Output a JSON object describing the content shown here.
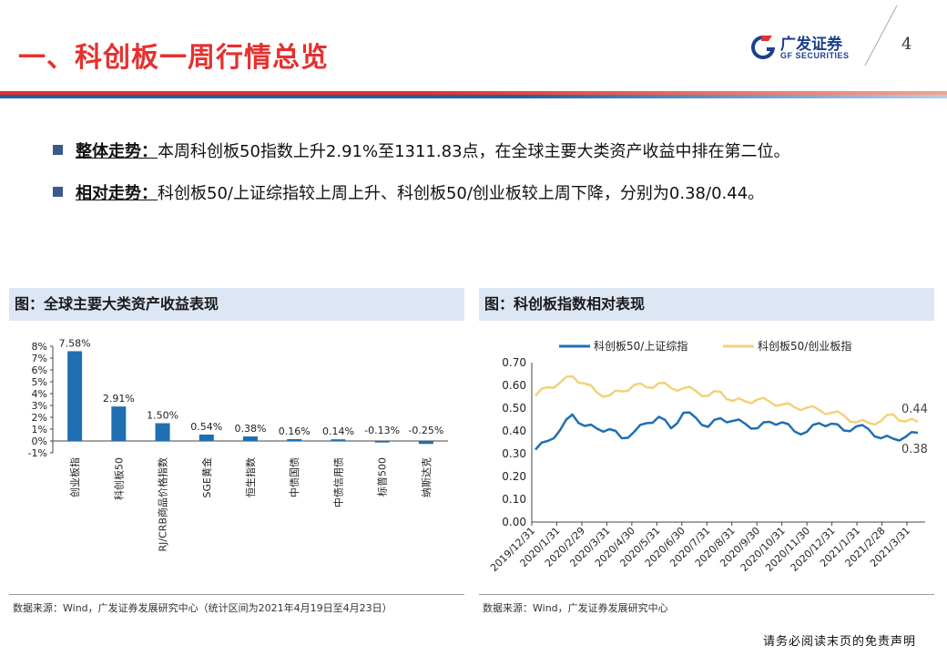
{
  "header": {
    "title": "一、科创板一周行情总览",
    "logo_cn": "广发证券",
    "logo_en": "GF SECURITIES",
    "page_number": "4",
    "colors": {
      "title_red": "#e4312f",
      "brand_blue": "#1b3f8f"
    }
  },
  "bullets": [
    {
      "key": "整体走势：",
      "text": "本周科创板50指数上升2.91%至1311.83点，在全球主要大类资产收益中排在第二位。"
    },
    {
      "key": "相对走势：",
      "text": "科创板50/上证综指较上周上升、科创板50/创业板较上周下降，分别为0.38/0.44。"
    }
  ],
  "panels": {
    "left_title": "图：全球主要大类资产收益表现",
    "right_title": "图：科创板指数相对表现",
    "left_source": "数据来源：Wind，广发证券发展研究中心（统计区间为2021年4月19日至4月23日）",
    "right_source": "数据来源：Wind，广发证券发展研究中心"
  },
  "chart_data": [
    {
      "type": "bar",
      "title": "",
      "categories": [
        "创业板指",
        "科创板50",
        "RJ/CRB商品价格指数",
        "SGE黄金",
        "恒生指数",
        "中债国债",
        "中债信用债",
        "标普500",
        "纳斯达克"
      ],
      "values": [
        7.58,
        2.91,
        1.5,
        0.54,
        0.38,
        0.16,
        0.14,
        -0.13,
        -0.25
      ],
      "value_labels": [
        "7.58%",
        "2.91%",
        "1.50%",
        "0.54%",
        "0.38%",
        "0.16%",
        "0.14%",
        "-0.13%",
        "-0.25%"
      ],
      "y_ticks": [
        "8%",
        "7%",
        "6%",
        "5%",
        "4%",
        "3%",
        "2%",
        "1%",
        "0%",
        "-1%"
      ],
      "ylim": [
        -1,
        8
      ],
      "bar_color": "#1f6fb2",
      "grid": false
    },
    {
      "type": "line",
      "title": "",
      "x_ticks": [
        "2019/12/31",
        "2020/1/31",
        "2020/2/29",
        "2020/3/31",
        "2020/4/30",
        "2020/5/31",
        "2020/6/30",
        "2020/7/31",
        "2020/8/31",
        "2020/9/30",
        "2020/10/31",
        "2020/11/30",
        "2020/12/31",
        "2021/1/31",
        "2021/2/28",
        "2021/3/31"
      ],
      "y_ticks": [
        "0.70",
        "0.60",
        "0.50",
        "0.40",
        "0.30",
        "0.20",
        "0.10",
        "0.00"
      ],
      "ylim": [
        0,
        0.7
      ],
      "legend_position": "top",
      "series": [
        {
          "name": "科创板50/上证综指",
          "color": "#1f6fb2",
          "end_label": "0.38",
          "values": [
            0.33,
            0.36,
            0.4,
            0.46,
            0.43,
            0.41,
            0.4,
            0.38,
            0.4,
            0.43,
            0.45,
            0.42,
            0.48,
            0.45,
            0.43,
            0.46,
            0.44,
            0.42,
            0.42,
            0.44,
            0.43,
            0.41,
            0.4,
            0.43,
            0.42,
            0.41,
            0.42,
            0.4,
            0.38,
            0.37,
            0.37,
            0.38
          ]
        },
        {
          "name": "科创板50/创业板指",
          "color": "#f2d27a",
          "end_label": "0.44",
          "values": [
            0.55,
            0.58,
            0.62,
            0.64,
            0.6,
            0.58,
            0.56,
            0.57,
            0.59,
            0.6,
            0.61,
            0.58,
            0.6,
            0.58,
            0.55,
            0.56,
            0.54,
            0.53,
            0.53,
            0.54,
            0.52,
            0.5,
            0.49,
            0.5,
            0.48,
            0.46,
            0.45,
            0.44,
            0.44,
            0.46,
            0.45,
            0.44
          ]
        }
      ]
    }
  ],
  "footer": {
    "disclaimer": "请务必阅读末页的免责声明"
  }
}
